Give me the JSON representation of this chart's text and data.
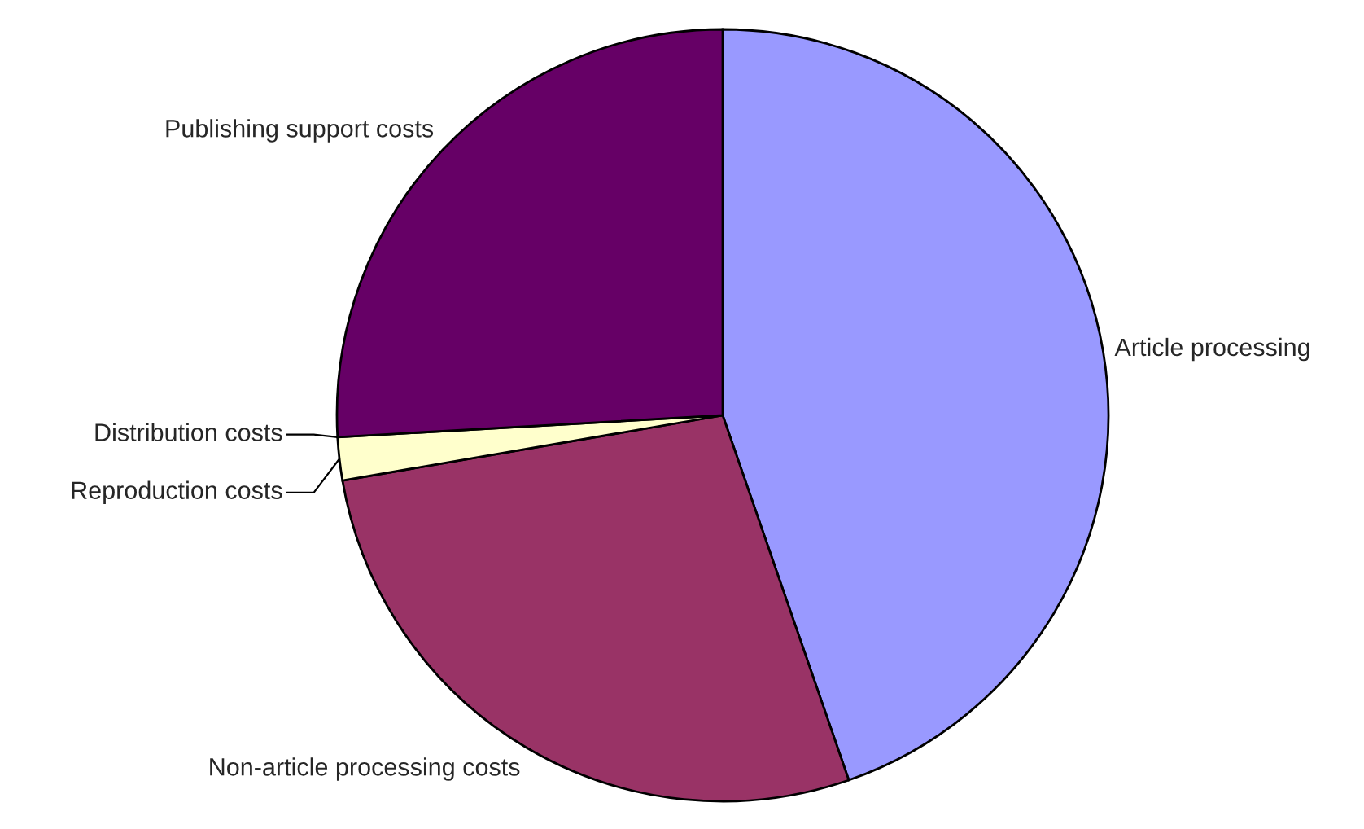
{
  "chart_data": {
    "type": "pie",
    "categories": [
      "Article processing",
      "Non-article processing costs",
      "Reproduction costs",
      "Distribution costs",
      "Publishing support costs"
    ],
    "values": [
      44.7,
      27.6,
      1.8,
      null,
      25.9
    ],
    "colors": [
      "#9999ff",
      "#993366",
      "#ffffcc",
      "#ccffff",
      "#660066"
    ]
  }
}
